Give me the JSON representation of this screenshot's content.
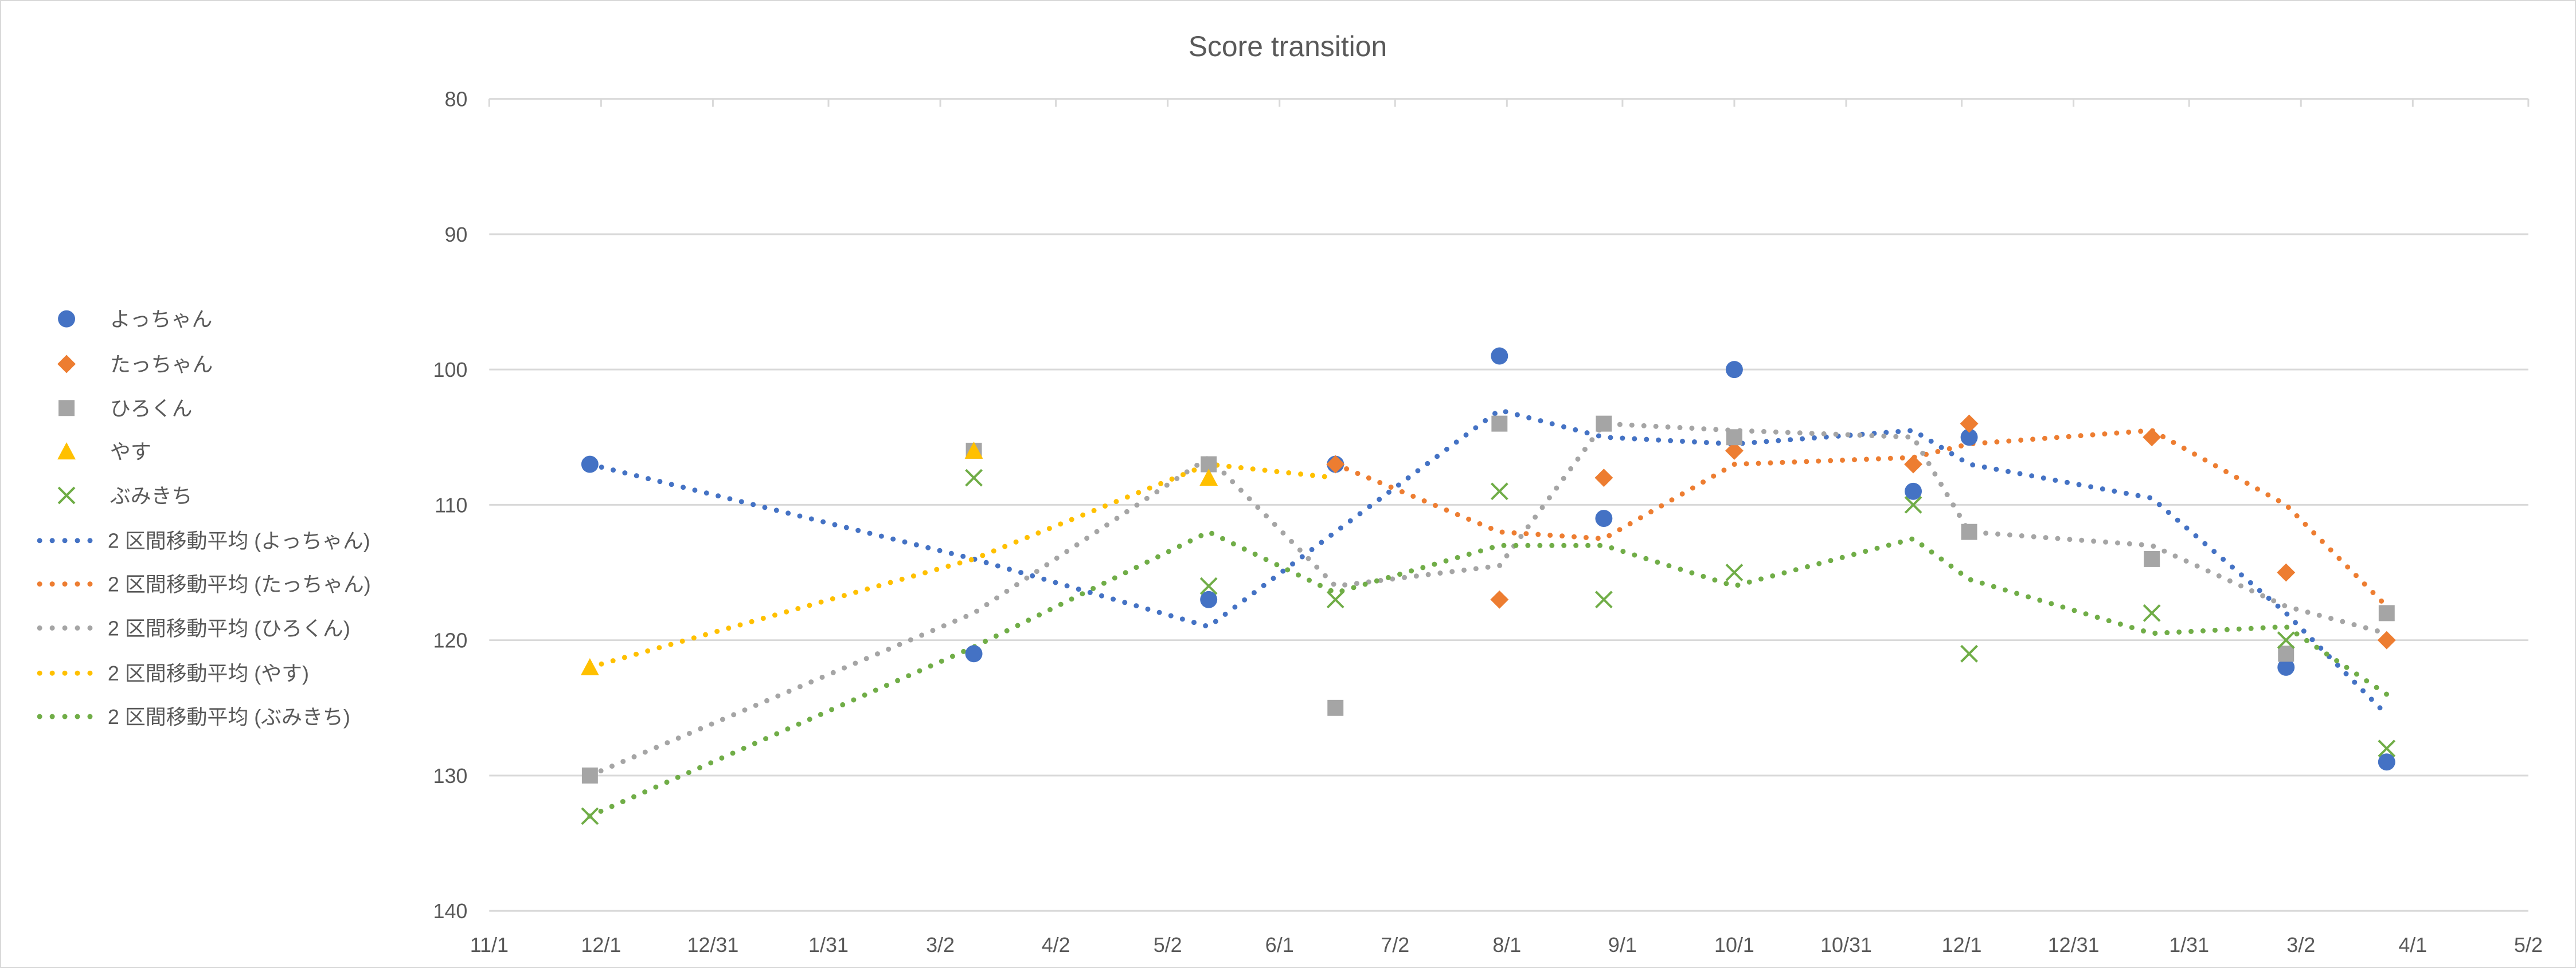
{
  "chart_data": {
    "type": "scatter",
    "title": "Score transition",
    "xlabel": "",
    "ylabel": "",
    "y_reversed": true,
    "ylim": [
      80,
      140
    ],
    "y_ticks": [
      80,
      90,
      100,
      110,
      120,
      130,
      140
    ],
    "x_unit": "days since 11/1",
    "xlim": [
      0,
      547
    ],
    "x_ticks": [
      {
        "value": 0,
        "label": "11/1"
      },
      {
        "value": 30,
        "label": "12/1"
      },
      {
        "value": 60,
        "label": "12/31"
      },
      {
        "value": 91,
        "label": "1/31"
      },
      {
        "value": 121,
        "label": "3/2"
      },
      {
        "value": 152,
        "label": "4/2"
      },
      {
        "value": 182,
        "label": "5/2"
      },
      {
        "value": 212,
        "label": "6/1"
      },
      {
        "value": 243,
        "label": "7/2"
      },
      {
        "value": 273,
        "label": "8/1"
      },
      {
        "value": 304,
        "label": "9/1"
      },
      {
        "value": 334,
        "label": "10/1"
      },
      {
        "value": 364,
        "label": "10/31"
      },
      {
        "value": 395,
        "label": "12/1"
      },
      {
        "value": 425,
        "label": "12/31"
      },
      {
        "value": 456,
        "label": "1/31"
      },
      {
        "value": 486,
        "label": "3/2"
      },
      {
        "value": 516,
        "label": "4/1"
      },
      {
        "value": 547,
        "label": "5/2"
      }
    ],
    "grid": true,
    "legend_position": "left",
    "x": [
      27,
      130,
      193,
      227,
      271,
      299,
      334,
      382,
      397,
      446,
      482,
      509
    ],
    "series": [
      {
        "name": "よっちゃん",
        "color": "#4472c4",
        "marker": "circle",
        "values": [
          107,
          121,
          117,
          107,
          99,
          111,
          100,
          109,
          105,
          null,
          122,
          129
        ]
      },
      {
        "name": "たっちゃん",
        "color": "#ed7d31",
        "marker": "diamond",
        "values": [
          null,
          null,
          null,
          107,
          117,
          108,
          106,
          107,
          104,
          105,
          115,
          120
        ]
      },
      {
        "name": "ひろくん",
        "color": "#a5a5a5",
        "marker": "square",
        "values": [
          130,
          106,
          107,
          125,
          104,
          104,
          105,
          null,
          112,
          114,
          121,
          118
        ]
      },
      {
        "name": "やす",
        "color": "#ffc000",
        "marker": "triangle",
        "values": [
          122,
          106,
          108,
          null,
          null,
          null,
          null,
          null,
          null,
          null,
          null,
          null
        ]
      },
      {
        "name": "ぶみきち",
        "color": "#70ad47",
        "marker": "x",
        "values": [
          133,
          108,
          116,
          117,
          109,
          117,
          115,
          110,
          121,
          118,
          120,
          128
        ]
      }
    ],
    "trendlines": [
      {
        "name": "2 区間移動平均 (よっちゃん)",
        "color": "#4472c4",
        "values": [
          107,
          114,
          119,
          112,
          103,
          105,
          105.5,
          104.5,
          107,
          109.5,
          118,
          125.5
        ]
      },
      {
        "name": "2 区間移動平均 (たっちゃん)",
        "color": "#ed7d31",
        "values": [
          null,
          null,
          null,
          107,
          112,
          112.5,
          107,
          106.5,
          105.5,
          104.5,
          110,
          117.5
        ]
      },
      {
        "name": "2 区間移動平均 (ひろくん)",
        "color": "#a5a5a5",
        "values": [
          130,
          118,
          106.5,
          116,
          114.5,
          104,
          104.5,
          105,
          112,
          113,
          117.5,
          119.5
        ]
      },
      {
        "name": "2 区間移動平均 (やす)",
        "color": "#ffc000",
        "values": [
          122,
          114,
          107,
          108,
          null,
          null,
          null,
          null,
          null,
          null,
          null,
          null
        ]
      },
      {
        "name": "2 区間移動平均 (ぶみきち)",
        "color": "#70ad47",
        "values": [
          133,
          120.5,
          112,
          116.5,
          113,
          113,
          116,
          112.5,
          115.5,
          119.5,
          119,
          124
        ]
      }
    ]
  }
}
